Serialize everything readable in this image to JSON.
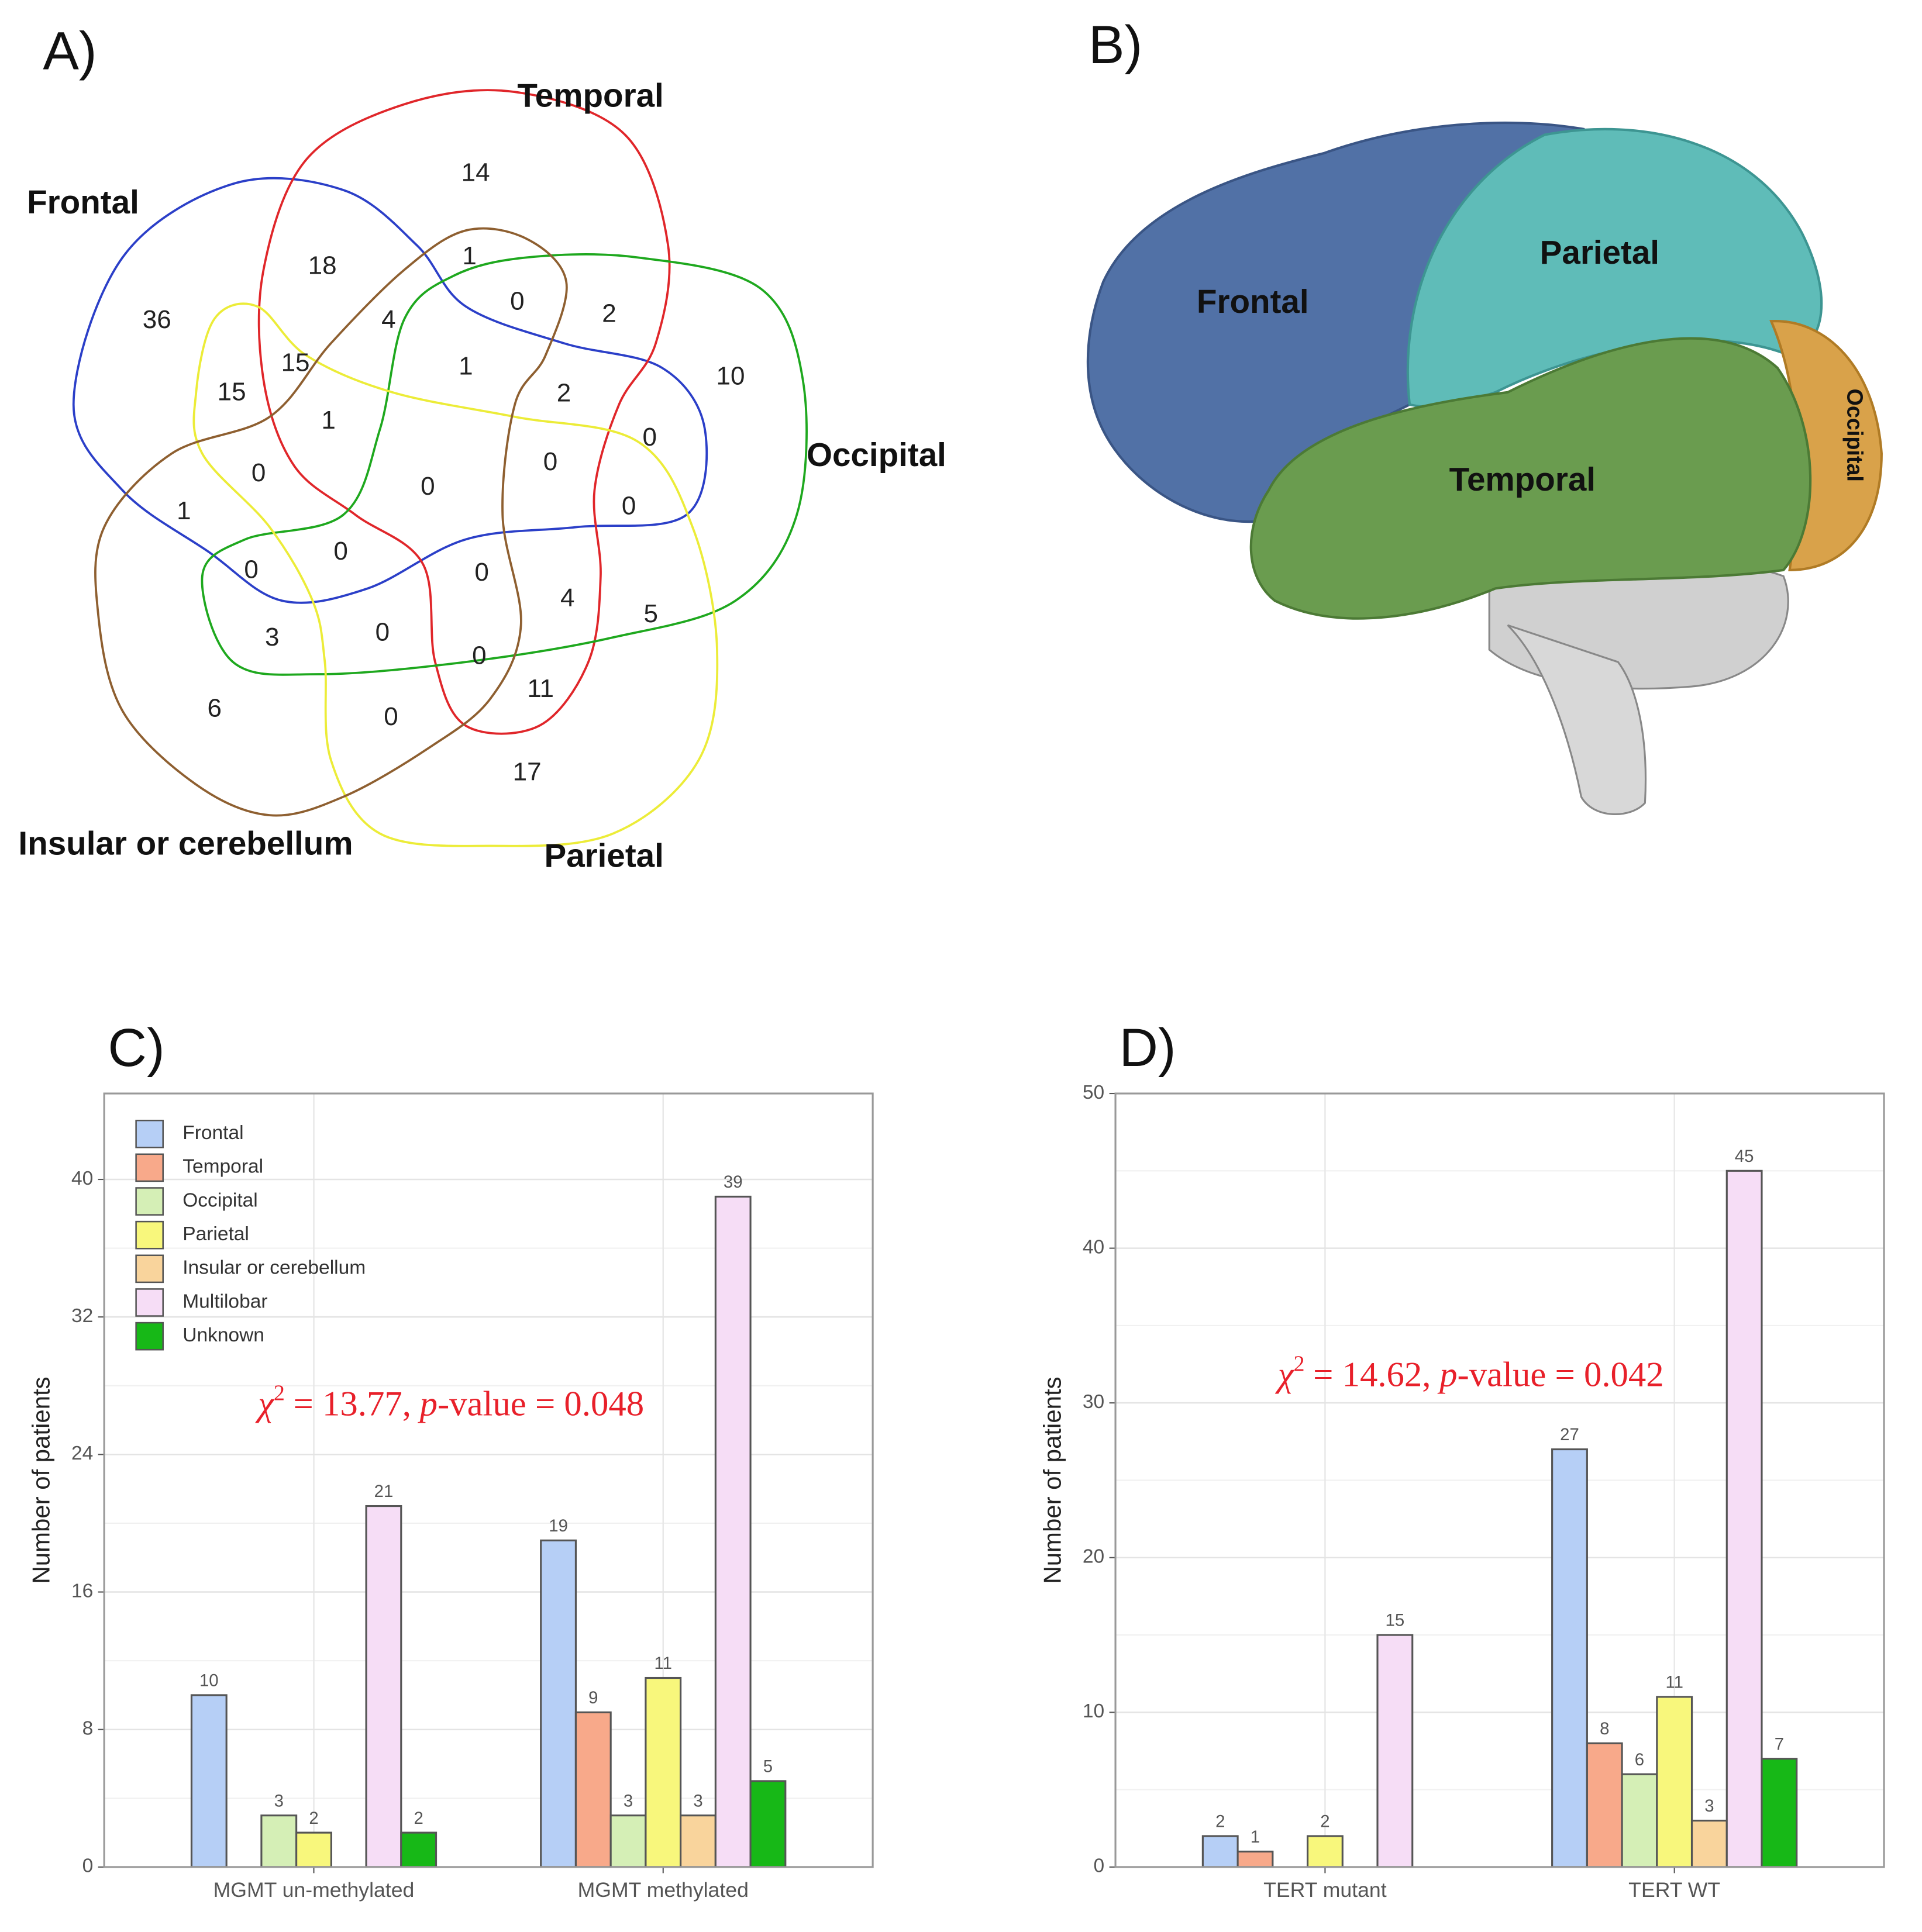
{
  "chart_data": [
    {
      "type": "venn",
      "panel_label": "A)",
      "sets": [
        {
          "name": "Frontal",
          "color": "#2b3fc8"
        },
        {
          "name": "Temporal",
          "color": "#e0262a"
        },
        {
          "name": "Occipital",
          "color": "#1ea81e"
        },
        {
          "name": "Parietal",
          "color": "#ecec38"
        },
        {
          "name": "Insular or cerebellum",
          "color": "#8e5f30"
        }
      ],
      "values": [
        14,
        18,
        36,
        1,
        0,
        2,
        4,
        15,
        15,
        1,
        2,
        10,
        1,
        0,
        0,
        0,
        0,
        1,
        0,
        0,
        0,
        0,
        4,
        5,
        3,
        0,
        0,
        11,
        6,
        0,
        17
      ]
    },
    {
      "type": "illustration",
      "panel_label": "B)",
      "labels": [
        "Frontal",
        "Parietal",
        "Temporal",
        "Occipital"
      ]
    },
    {
      "type": "bar",
      "panel_label": "C)",
      "y_label": "Number of patients",
      "categories": [
        "MGMT un-methylated",
        "MGMT methylated"
      ],
      "series": [
        {
          "name": "Frontal",
          "color": "#b6cff6",
          "values": [
            10,
            19
          ]
        },
        {
          "name": "Temporal",
          "color": "#f8a98a",
          "values": [
            null,
            9
          ]
        },
        {
          "name": "Occipital",
          "color": "#d5efb6",
          "values": [
            3,
            3
          ]
        },
        {
          "name": "Parietal",
          "color": "#f8f77c",
          "values": [
            2,
            11
          ]
        },
        {
          "name": "Insular or cerebellum",
          "color": "#f9d49c",
          "values": [
            null,
            3
          ]
        },
        {
          "name": "Multilobar",
          "color": "#f6ddf6",
          "values": [
            21,
            39
          ]
        },
        {
          "name": "Unknown",
          "color": "#17b817",
          "values": [
            2,
            5
          ]
        }
      ],
      "ylim": [
        0,
        45
      ],
      "yticks": [
        0,
        8,
        16,
        24,
        32,
        40
      ],
      "grid": true,
      "legend": "top-left",
      "annotation": {
        "symbol": "χ",
        "superscript": "2",
        "text": "= 13.77,",
        "italic": "p",
        "rest": "-value = 0.048",
        "color": "#e8202a"
      }
    },
    {
      "type": "bar",
      "panel_label": "D)",
      "y_label": "Number of patients",
      "categories": [
        "TERT mutant",
        "TERT WT"
      ],
      "series": [
        {
          "color": "#b6cff6",
          "values": [
            2,
            27
          ]
        },
        {
          "color": "#f8a98a",
          "values": [
            1,
            8
          ]
        },
        {
          "color": "#d5efb6",
          "values": [
            null,
            6
          ]
        },
        {
          "color": "#f8f77c",
          "values": [
            2,
            11
          ]
        },
        {
          "color": "#f9d49c",
          "values": [
            null,
            3
          ]
        },
        {
          "color": "#f6ddf6",
          "values": [
            15,
            45
          ]
        },
        {
          "color": "#17b817",
          "values": [
            null,
            7
          ]
        }
      ],
      "ylim": [
        0,
        50
      ],
      "yticks": [
        0,
        10,
        20,
        30,
        40,
        50
      ],
      "grid": true,
      "annotation": {
        "symbol": "χ",
        "superscript": "2",
        "text": "= 14.62,",
        "italic": "p",
        "rest": "-value = 0.042",
        "color": "#e8202a"
      }
    }
  ]
}
